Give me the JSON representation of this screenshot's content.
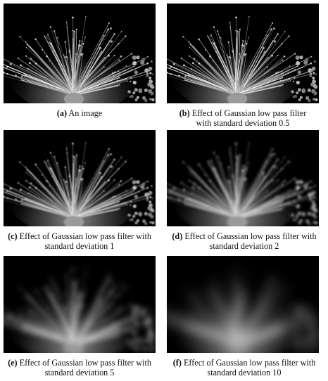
{
  "figure": {
    "panels": [
      {
        "letter": "(a)",
        "caption_line1": "An image",
        "caption_line2": "",
        "sigma": 0
      },
      {
        "letter": "(b)",
        "caption_line1": "Effect of Gaussian low pass filter",
        "caption_line2": "with standard deviation 0.5",
        "sigma": 0.5
      },
      {
        "letter": "(c)",
        "caption_line1": "Effect of Gaussian low pass filter with",
        "caption_line2": "standard deviation 1",
        "sigma": 1
      },
      {
        "letter": "(d)",
        "caption_line1": "Effect of Gaussian low pass filter with",
        "caption_line2": "standard deviation 2",
        "sigma": 2
      },
      {
        "letter": "(e)",
        "caption_line1": "Effect of Gaussian low pass filter with",
        "caption_line2": "standard deviation 5",
        "sigma": 5
      },
      {
        "letter": "(f)",
        "caption_line1": "Effect of Gaussian low pass filter with",
        "caption_line2": "standard deviation 10",
        "sigma": 10
      }
    ]
  }
}
